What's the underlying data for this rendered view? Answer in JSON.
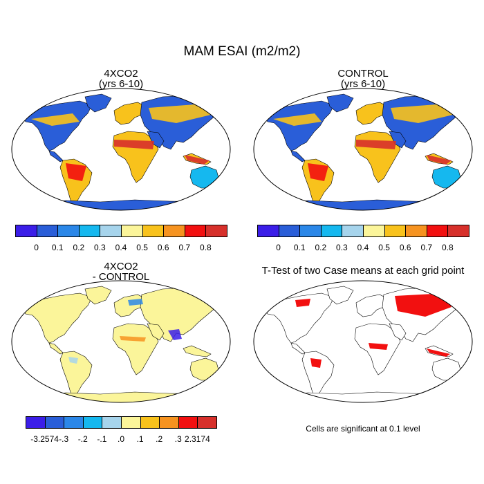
{
  "title": "MAM ESAI (m2/m2)",
  "panels": {
    "p1": {
      "title_line1": "4XCO2",
      "title_line2": "(yrs 6-10)"
    },
    "p2": {
      "title_line1": "CONTROL",
      "title_line2": "(yrs 6-10)"
    },
    "p3": {
      "title_line1": "4XCO2",
      "title_line2": "- CONTROL"
    },
    "p4": {
      "title_line1": "T-Test of two Case means at each grid point",
      "note": "Cells are significant at 0.1 level"
    }
  },
  "colorbar_abs": {
    "colors": [
      "#3b1ee8",
      "#2a5ed8",
      "#2b87e8",
      "#15b8ef",
      "#a6d4ec",
      "#fbf59a",
      "#f8c21c",
      "#f69320",
      "#f21010",
      "#d7302b"
    ],
    "labels": [
      "0",
      "0.1",
      "0.2",
      "0.3",
      "0.4",
      "0.5",
      "0.6",
      "0.7",
      "0.8"
    ]
  },
  "colorbar_diff": {
    "colors": [
      "#3b1ee8",
      "#2a5ed8",
      "#2b87e8",
      "#15b8ef",
      "#a6d4ec",
      "#fbf59a",
      "#f8c21c",
      "#f69320",
      "#f21010",
      "#d7302b"
    ],
    "labels": [
      "-3.2574",
      "-.3",
      "-.2",
      "-.1",
      ".0",
      ".1",
      ".2",
      ".3",
      "2.3174"
    ]
  },
  "colors": {
    "ocean": "#ffffff",
    "antarctica_abs": "#2a5ed8",
    "antarctica_diff": "#fbf59a",
    "significant": "#f21010"
  }
}
